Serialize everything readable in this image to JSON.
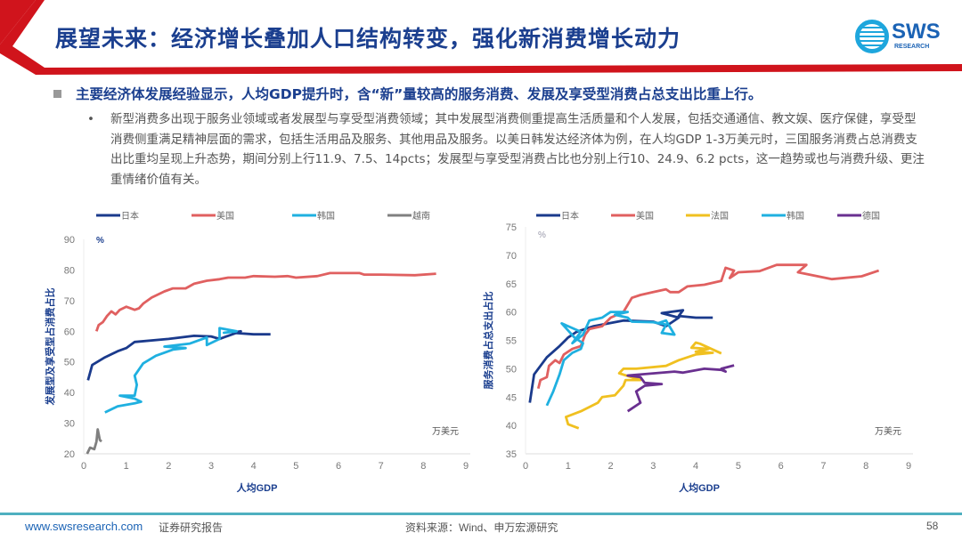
{
  "header": {
    "title": "展望未来：经济增长叠加人口结构转变，强化新消费增长动力",
    "logo_text": "SWS",
    "logo_subtext": "RESEARCH"
  },
  "headline": "主要经济体发展经验显示，人均GDP提升时，含“新”量较高的服务消费、发展及享受型消费占总支出比重上行。",
  "bullet": {
    "marker": "•",
    "text": "新型消费多出现于服务业领域或者发展型与享受型消费领域；其中发展型消费侧重提高生活质量和个人发展，包括交通通信、教文娱、医疗保健，享受型消费侧重满足精神层面的需求，包括生活用品及服务、其他用品及服务。以美日韩发达经济体为例，在人均GDP 1-3万美元时，三国服务消费占总消费支出比重均呈现上升态势，期间分别上行11.9、7.5、14pcts；发展型与享受型消费占比也分别上行10、24.9、6.2 pcts，这一趋势或也与消费升级、更注重情绪价值有关。"
  },
  "footer": {
    "url": "www.swsresearch.com",
    "type": "证券研究报告",
    "source": "资料来源：Wind、申万宏源研究",
    "page": "58"
  },
  "colors": {
    "brand_red": "#d0141c",
    "title_blue": "#1b3f8f",
    "footer_line": "#4fb0c0"
  },
  "chart_data": [
    {
      "type": "line",
      "xlabel": "人均GDP",
      "ylabel": "发展型及享受型占消费占比",
      "y_unit": "%",
      "x_unit": "万美元",
      "xlim": [
        0,
        9
      ],
      "ylim": [
        20,
        90
      ],
      "xticks": [
        "0",
        "1",
        "2",
        "3",
        "4",
        "5",
        "6",
        "7",
        "8",
        "9"
      ],
      "yticks": [
        "20",
        "30",
        "40",
        "50",
        "60",
        "70",
        "80",
        "90"
      ],
      "legend": "top",
      "grid": false,
      "series": [
        {
          "name": "日本",
          "color": "#1a3a8c",
          "points": [
            [
              0.1,
              44
            ],
            [
              0.2,
              49
            ],
            [
              0.5,
              51.5
            ],
            [
              0.8,
              53.5
            ],
            [
              1,
              54.5
            ],
            [
              1.2,
              56.5
            ],
            [
              2,
              57.5
            ],
            [
              2.6,
              58.5
            ],
            [
              3,
              58.3
            ],
            [
              3.2,
              57.5
            ],
            [
              3.4,
              58.5
            ],
            [
              3.7,
              60
            ],
            [
              3.5,
              59.5
            ],
            [
              4,
              59
            ],
            [
              4.4,
              59
            ]
          ]
        },
        {
          "name": "美国",
          "color": "#e06060",
          "points": [
            [
              0.3,
              60
            ],
            [
              0.35,
              62
            ],
            [
              0.45,
              63
            ],
            [
              0.55,
              65
            ],
            [
              0.65,
              66.5
            ],
            [
              0.75,
              65.5
            ],
            [
              0.85,
              67
            ],
            [
              1,
              68
            ],
            [
              1.2,
              67
            ],
            [
              1.3,
              67.5
            ],
            [
              1.4,
              69
            ],
            [
              1.6,
              71
            ],
            [
              1.9,
              73
            ],
            [
              2.1,
              74
            ],
            [
              2.4,
              74
            ],
            [
              2.6,
              75.5
            ],
            [
              2.9,
              76.5
            ],
            [
              3.2,
              77
            ],
            [
              3.4,
              77.5
            ],
            [
              3.8,
              77.5
            ],
            [
              4,
              78
            ],
            [
              4.5,
              77.8
            ],
            [
              4.8,
              78
            ],
            [
              5,
              77.5
            ],
            [
              5.5,
              78
            ],
            [
              5.8,
              79
            ],
            [
              6.5,
              79
            ],
            [
              6.6,
              78.5
            ],
            [
              7,
              78.5
            ],
            [
              7.8,
              78.3
            ],
            [
              8.3,
              78.8
            ]
          ]
        },
        {
          "name": "韩国",
          "color": "#1fb0e0",
          "points": [
            [
              0.5,
              33.5
            ],
            [
              0.8,
              35.5
            ],
            [
              1.2,
              36.5
            ],
            [
              1.35,
              37
            ],
            [
              1.2,
              38
            ],
            [
              0.85,
              39
            ],
            [
              1.2,
              39
            ],
            [
              1.25,
              42.5
            ],
            [
              1.2,
              45.5
            ],
            [
              1.4,
              49.5
            ],
            [
              1.7,
              52
            ],
            [
              2.1,
              54
            ],
            [
              2.4,
              54.5
            ],
            [
              1.9,
              55
            ],
            [
              2.5,
              56
            ],
            [
              2.9,
              58
            ],
            [
              2.9,
              55.5
            ],
            [
              3.2,
              57.5
            ],
            [
              3.2,
              61
            ],
            [
              3.6,
              60
            ],
            [
              3.3,
              59.5
            ],
            [
              3.6,
              60
            ]
          ]
        },
        {
          "name": "越南",
          "color": "#808080",
          "points": [
            [
              0.08,
              20
            ],
            [
              0.15,
              22
            ],
            [
              0.25,
              21.5
            ],
            [
              0.3,
              24
            ],
            [
              0.33,
              28
            ],
            [
              0.38,
              24.5
            ],
            [
              0.42,
              24
            ]
          ]
        }
      ]
    },
    {
      "type": "line",
      "xlabel": "人均GDP",
      "ylabel": "服务消费占总支出占比",
      "y_unit": "%",
      "x_unit": "万美元",
      "xlim": [
        0,
        9
      ],
      "ylim": [
        35,
        75
      ],
      "xticks": [
        "0",
        "1",
        "2",
        "3",
        "4",
        "5",
        "6",
        "7",
        "8",
        "9"
      ],
      "yticks": [
        "35",
        "40",
        "45",
        "50",
        "55",
        "60",
        "65",
        "70",
        "75"
      ],
      "legend": "top",
      "grid": false,
      "series": [
        {
          "name": "日本",
          "color": "#1a3a8c",
          "points": [
            [
              0.1,
              44
            ],
            [
              0.2,
              49
            ],
            [
              0.5,
              52
            ],
            [
              0.8,
              54
            ],
            [
              1,
              55.5
            ],
            [
              1.2,
              56.5
            ],
            [
              1.6,
              57.5
            ],
            [
              2.3,
              58.5
            ],
            [
              3,
              58.3
            ],
            [
              3.3,
              57.5
            ],
            [
              3.6,
              59
            ],
            [
              3.2,
              59.8
            ],
            [
              3.7,
              60.3
            ],
            [
              3.6,
              59.3
            ],
            [
              4,
              59
            ],
            [
              4.4,
              59
            ]
          ]
        },
        {
          "name": "美国",
          "color": "#e06060",
          "points": [
            [
              0.3,
              46.5
            ],
            [
              0.35,
              48
            ],
            [
              0.5,
              48.5
            ],
            [
              0.55,
              50.5
            ],
            [
              0.7,
              51.5
            ],
            [
              0.8,
              51
            ],
            [
              0.9,
              52.5
            ],
            [
              1.1,
              53.5
            ],
            [
              1.3,
              54
            ],
            [
              1.4,
              56
            ],
            [
              1.5,
              57
            ],
            [
              1.8,
              57.5
            ],
            [
              2,
              59
            ],
            [
              2.3,
              60
            ],
            [
              2.5,
              62.5
            ],
            [
              2.7,
              63
            ],
            [
              3,
              63.5
            ],
            [
              3.3,
              64
            ],
            [
              3.4,
              63.5
            ],
            [
              3.6,
              63.5
            ],
            [
              3.8,
              64.5
            ],
            [
              4.2,
              64.8
            ],
            [
              4.6,
              65.5
            ],
            [
              4.7,
              67.8
            ],
            [
              4.9,
              67.3
            ],
            [
              4.8,
              66
            ],
            [
              5,
              67
            ],
            [
              5.5,
              67.2
            ],
            [
              5.9,
              68.3
            ],
            [
              6.6,
              68.3
            ],
            [
              6.4,
              67
            ],
            [
              7.2,
              65.8
            ],
            [
              7.9,
              66.3
            ],
            [
              8.3,
              67.3
            ]
          ]
        },
        {
          "name": "法国",
          "color": "#f0c020",
          "points": [
            [
              1.25,
              39.5
            ],
            [
              1.0,
              40.2
            ],
            [
              0.95,
              41.5
            ],
            [
              1.3,
              42.5
            ],
            [
              1.7,
              44
            ],
            [
              1.8,
              45
            ],
            [
              2.1,
              45.3
            ],
            [
              2.3,
              47
            ],
            [
              2.35,
              48
            ],
            [
              2.7,
              48
            ],
            [
              2.2,
              49.2
            ],
            [
              2.3,
              50
            ],
            [
              2.6,
              50
            ],
            [
              3.3,
              50.5
            ],
            [
              3.6,
              51.5
            ],
            [
              4.0,
              52.5
            ],
            [
              4.4,
              52.8
            ],
            [
              4.0,
              53
            ],
            [
              4.3,
              53.5
            ],
            [
              3.9,
              53.7
            ],
            [
              4.0,
              54.6
            ],
            [
              4.1,
              54.4
            ],
            [
              4.6,
              52.7
            ]
          ]
        },
        {
          "name": "韩国",
          "color": "#1fb0e0",
          "points": [
            [
              0.5,
              43.5
            ],
            [
              0.65,
              46
            ],
            [
              0.8,
              49
            ],
            [
              0.9,
              51.5
            ],
            [
              1.1,
              52.8
            ],
            [
              1.3,
              53.5
            ],
            [
              1.35,
              54.5
            ],
            [
              1.15,
              55.5
            ],
            [
              0.85,
              58
            ],
            [
              1.3,
              56.5
            ],
            [
              1.1,
              54.5
            ],
            [
              1.35,
              56
            ],
            [
              1.5,
              58.5
            ],
            [
              1.8,
              59
            ],
            [
              2.0,
              60
            ],
            [
              2.4,
              60
            ],
            [
              2.1,
              59.5
            ],
            [
              2.4,
              59
            ],
            [
              2.5,
              58.3
            ],
            [
              3.0,
              58.2
            ],
            [
              3.3,
              57.8
            ],
            [
              3.2,
              56.3
            ],
            [
              3.5,
              56
            ],
            [
              3.3,
              58.5
            ],
            [
              3.1,
              58
            ]
          ]
        },
        {
          "name": "德国",
          "color": "#6a3090",
          "points": [
            [
              2.4,
              42.5
            ],
            [
              2.7,
              44
            ],
            [
              2.6,
              46
            ],
            [
              2.8,
              47
            ],
            [
              3.2,
              47.3
            ],
            [
              2.8,
              47.5
            ],
            [
              2.7,
              48.5
            ],
            [
              2.4,
              48.8
            ],
            [
              3.5,
              49.5
            ],
            [
              3.7,
              49.3
            ],
            [
              4.2,
              50
            ],
            [
              4.6,
              49.8
            ],
            [
              4.7,
              49.5
            ],
            [
              4.6,
              50
            ],
            [
              4.9,
              50.6
            ]
          ]
        }
      ]
    }
  ]
}
